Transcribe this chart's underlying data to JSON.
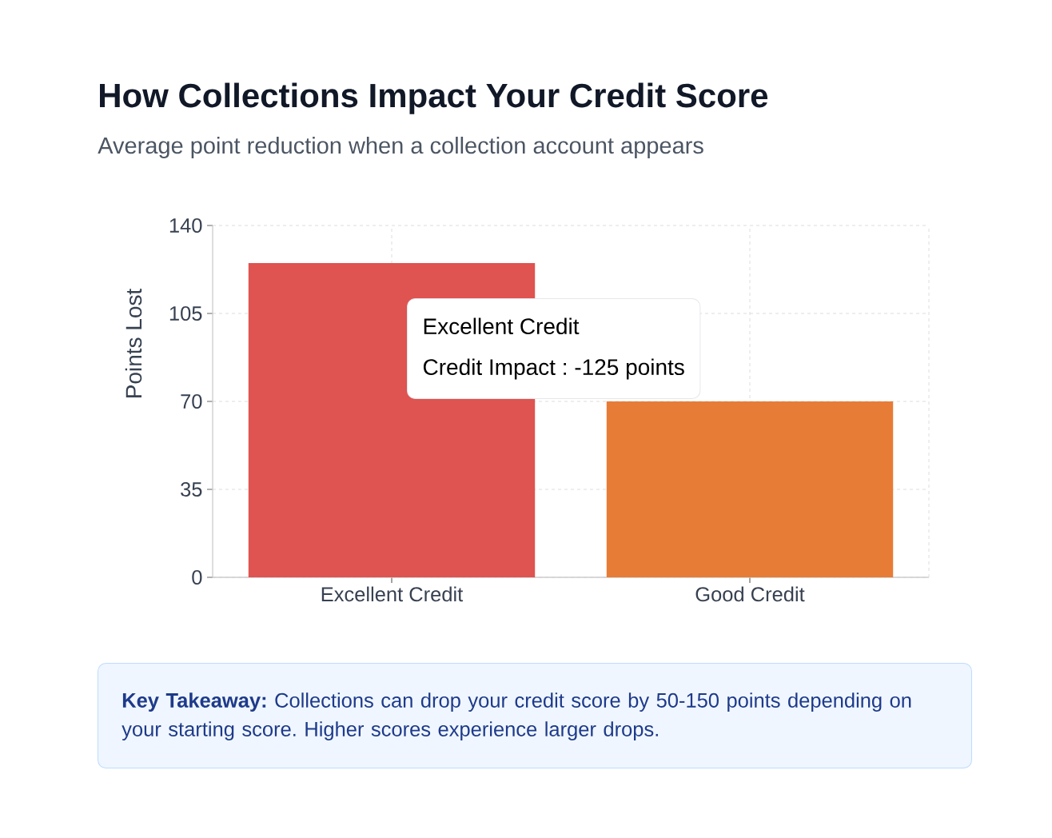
{
  "chart_data": {
    "type": "bar",
    "title": "How Collections Impact Your Credit Score",
    "subtitle": "Average point reduction when a collection account appears",
    "ylabel": "Points Lost",
    "categories": [
      "Excellent Credit",
      "Good Credit"
    ],
    "values": [
      125,
      70
    ],
    "colors": [
      "#df5350",
      "#e77c37"
    ],
    "ylim": [
      0,
      140
    ],
    "yticks": [
      0,
      35,
      70,
      105,
      140
    ],
    "grid": true,
    "annotations": [
      "Excellent Credit",
      "Credit Impact : -125 points",
      "**Key Takeaway:** Collections can drop your credit score by 50-150 points depending on your starting score. Higher scores experience larger drops."
    ]
  }
}
